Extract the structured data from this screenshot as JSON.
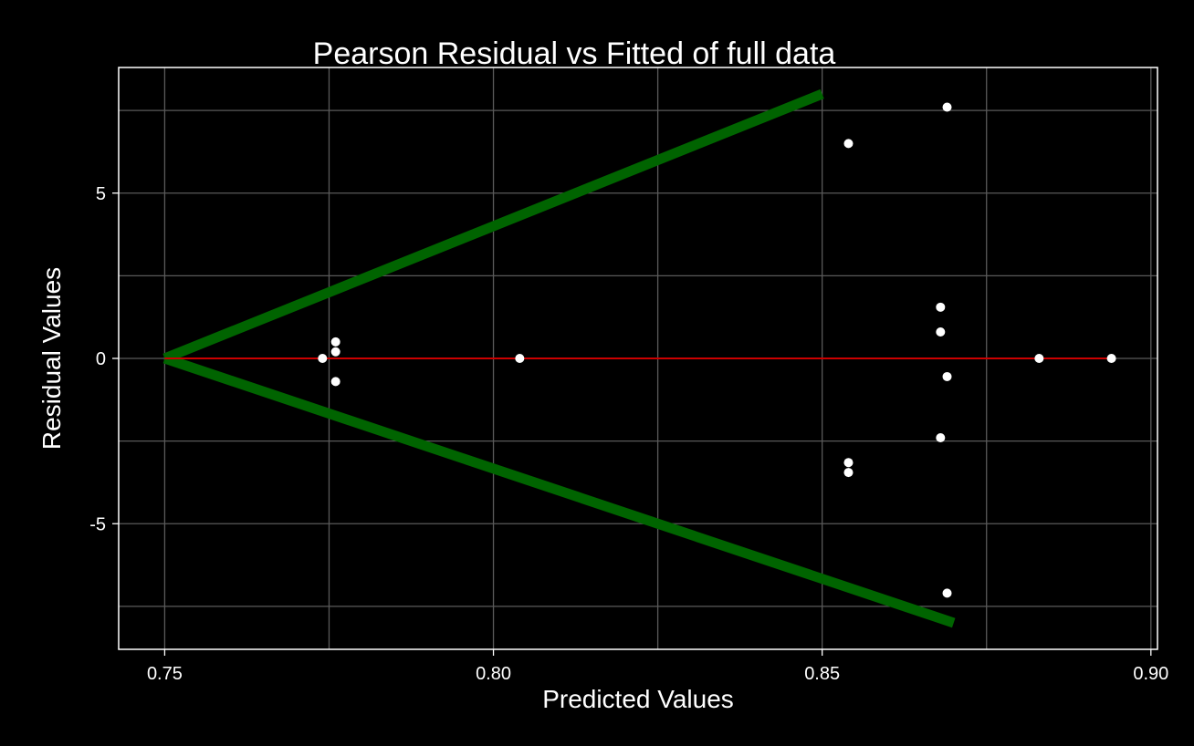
{
  "chart_data": {
    "type": "scatter",
    "title": "Pearson Residual vs Fitted of full data",
    "xlabel": "Predicted Values",
    "ylabel": "Residual Values",
    "xlim": [
      0.743,
      0.901
    ],
    "ylim": [
      -8.8,
      8.8
    ],
    "x_ticks": [
      0.75,
      0.8,
      0.85,
      0.9
    ],
    "x_tick_labels": [
      "0.75",
      "0.80",
      "0.85",
      "0.90"
    ],
    "y_ticks": [
      -5,
      0,
      5
    ],
    "y_tick_labels": [
      "-5",
      "0",
      "5"
    ],
    "grid": true,
    "legend": "none",
    "colors": {
      "background": "#000000",
      "grid": "#5a5a5a",
      "frame": "#ffffff",
      "points": "#ffffff",
      "zero_line": "#cc0000",
      "funnel": "#006400"
    },
    "points": [
      {
        "x": 0.774,
        "y": 0.0
      },
      {
        "x": 0.776,
        "y": 0.5
      },
      {
        "x": 0.776,
        "y": 0.2
      },
      {
        "x": 0.776,
        "y": -0.7
      },
      {
        "x": 0.804,
        "y": 0.0
      },
      {
        "x": 0.854,
        "y": 6.5
      },
      {
        "x": 0.854,
        "y": -3.15
      },
      {
        "x": 0.854,
        "y": -3.45
      },
      {
        "x": 0.868,
        "y": 1.55
      },
      {
        "x": 0.868,
        "y": 0.8
      },
      {
        "x": 0.868,
        "y": -2.4
      },
      {
        "x": 0.869,
        "y": 7.6
      },
      {
        "x": 0.869,
        "y": -0.55
      },
      {
        "x": 0.869,
        "y": -7.1
      },
      {
        "x": 0.883,
        "y": 0.0
      },
      {
        "x": 0.894,
        "y": 0.0
      }
    ],
    "zero_line": {
      "x": [
        0.75,
        0.894
      ],
      "y": 0
    },
    "funnel_lines": [
      {
        "x": [
          0.75,
          0.85
        ],
        "y": [
          0,
          8
        ]
      },
      {
        "x": [
          0.75,
          0.87
        ],
        "y": [
          0,
          -8
        ]
      }
    ]
  }
}
